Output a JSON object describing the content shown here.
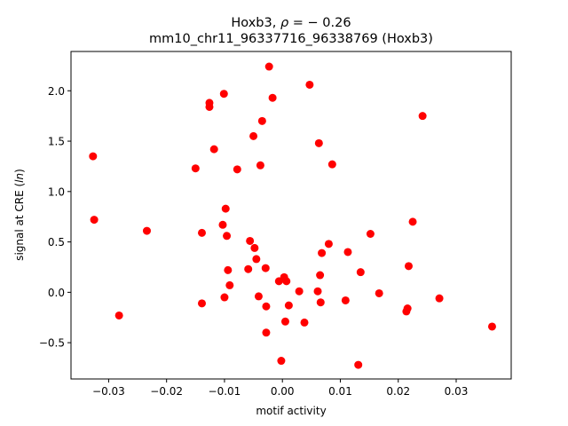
{
  "chart_data": {
    "type": "scatter",
    "title_line1_prefix": "Hoxb3, ",
    "title_line1_rho": "ρ",
    "title_line1_suffix": " = − 0.26",
    "title_line2": "mm10_chr11_96337716_96338769 (Hoxb3)",
    "xlabel": "motif activity",
    "ylabel_prefix": "signal at CRE (",
    "ylabel_var": "ln",
    "ylabel_suffix": ")",
    "xlim": [
      -0.0365,
      0.0395
    ],
    "ylim": [
      -0.86,
      2.39
    ],
    "xticks": [
      {
        "value": -0.03,
        "label": "−0.03"
      },
      {
        "value": -0.02,
        "label": "−0.02"
      },
      {
        "value": -0.01,
        "label": "−0.01"
      },
      {
        "value": 0.0,
        "label": "0.00"
      },
      {
        "value": 0.01,
        "label": "0.01"
      },
      {
        "value": 0.02,
        "label": "0.02"
      },
      {
        "value": 0.03,
        "label": "0.03"
      }
    ],
    "yticks": [
      {
        "value": -0.5,
        "label": "−0.5"
      },
      {
        "value": 0.0,
        "label": "0.0"
      },
      {
        "value": 0.5,
        "label": "0.5"
      },
      {
        "value": 1.0,
        "label": "1.0"
      },
      {
        "value": 1.5,
        "label": "1.5"
      },
      {
        "value": 2.0,
        "label": "2.0"
      }
    ],
    "grid": false,
    "marker_color": "#ff0000",
    "points": [
      {
        "x": -0.0327,
        "y": 1.35
      },
      {
        "x": -0.0325,
        "y": 0.72
      },
      {
        "x": -0.0282,
        "y": -0.23
      },
      {
        "x": -0.0234,
        "y": 0.61
      },
      {
        "x": -0.015,
        "y": 1.23
      },
      {
        "x": -0.0139,
        "y": 0.59
      },
      {
        "x": -0.0139,
        "y": -0.11
      },
      {
        "x": -0.0126,
        "y": 1.88
      },
      {
        "x": -0.0126,
        "y": 1.84
      },
      {
        "x": -0.0118,
        "y": 1.42
      },
      {
        "x": -0.0103,
        "y": 0.67
      },
      {
        "x": -0.0101,
        "y": 1.97
      },
      {
        "x": -0.01,
        "y": -0.05
      },
      {
        "x": -0.0098,
        "y": 0.83
      },
      {
        "x": -0.0096,
        "y": 0.56
      },
      {
        "x": -0.0094,
        "y": 0.22
      },
      {
        "x": -0.0091,
        "y": 0.07
      },
      {
        "x": -0.0078,
        "y": 1.22
      },
      {
        "x": -0.0059,
        "y": 0.23
      },
      {
        "x": -0.0056,
        "y": 0.51
      },
      {
        "x": -0.005,
        "y": 1.55
      },
      {
        "x": -0.0048,
        "y": 0.44
      },
      {
        "x": -0.0045,
        "y": 0.33
      },
      {
        "x": -0.0041,
        "y": -0.04
      },
      {
        "x": -0.0038,
        "y": 1.26
      },
      {
        "x": -0.0035,
        "y": 1.7
      },
      {
        "x": -0.0029,
        "y": 0.24
      },
      {
        "x": -0.0028,
        "y": -0.14
      },
      {
        "x": -0.0028,
        "y": -0.4
      },
      {
        "x": -0.0023,
        "y": 2.24
      },
      {
        "x": -0.0017,
        "y": 1.93
      },
      {
        "x": -0.0006,
        "y": 0.11
      },
      {
        "x": -0.0002,
        "y": -0.68
      },
      {
        "x": 0.0003,
        "y": 0.15
      },
      {
        "x": 0.0005,
        "y": -0.29
      },
      {
        "x": 0.0007,
        "y": 0.11
      },
      {
        "x": 0.0011,
        "y": -0.13
      },
      {
        "x": 0.0029,
        "y": 0.01
      },
      {
        "x": 0.0038,
        "y": -0.3
      },
      {
        "x": 0.0047,
        "y": 2.06
      },
      {
        "x": 0.0061,
        "y": 0.01
      },
      {
        "x": 0.0063,
        "y": 1.48
      },
      {
        "x": 0.0065,
        "y": 0.17
      },
      {
        "x": 0.0066,
        "y": -0.1
      },
      {
        "x": 0.0068,
        "y": 0.39
      },
      {
        "x": 0.008,
        "y": 0.48
      },
      {
        "x": 0.0086,
        "y": 1.27
      },
      {
        "x": 0.0109,
        "y": -0.08
      },
      {
        "x": 0.0113,
        "y": 0.4
      },
      {
        "x": 0.0131,
        "y": -0.72
      },
      {
        "x": 0.0135,
        "y": 0.2
      },
      {
        "x": 0.0152,
        "y": 0.58
      },
      {
        "x": 0.0167,
        "y": -0.01
      },
      {
        "x": 0.0214,
        "y": -0.19
      },
      {
        "x": 0.0216,
        "y": -0.16
      },
      {
        "x": 0.0218,
        "y": 0.26
      },
      {
        "x": 0.0225,
        "y": 0.7
      },
      {
        "x": 0.0242,
        "y": 1.75
      },
      {
        "x": 0.0271,
        "y": -0.06
      },
      {
        "x": 0.0362,
        "y": -0.34
      }
    ]
  }
}
